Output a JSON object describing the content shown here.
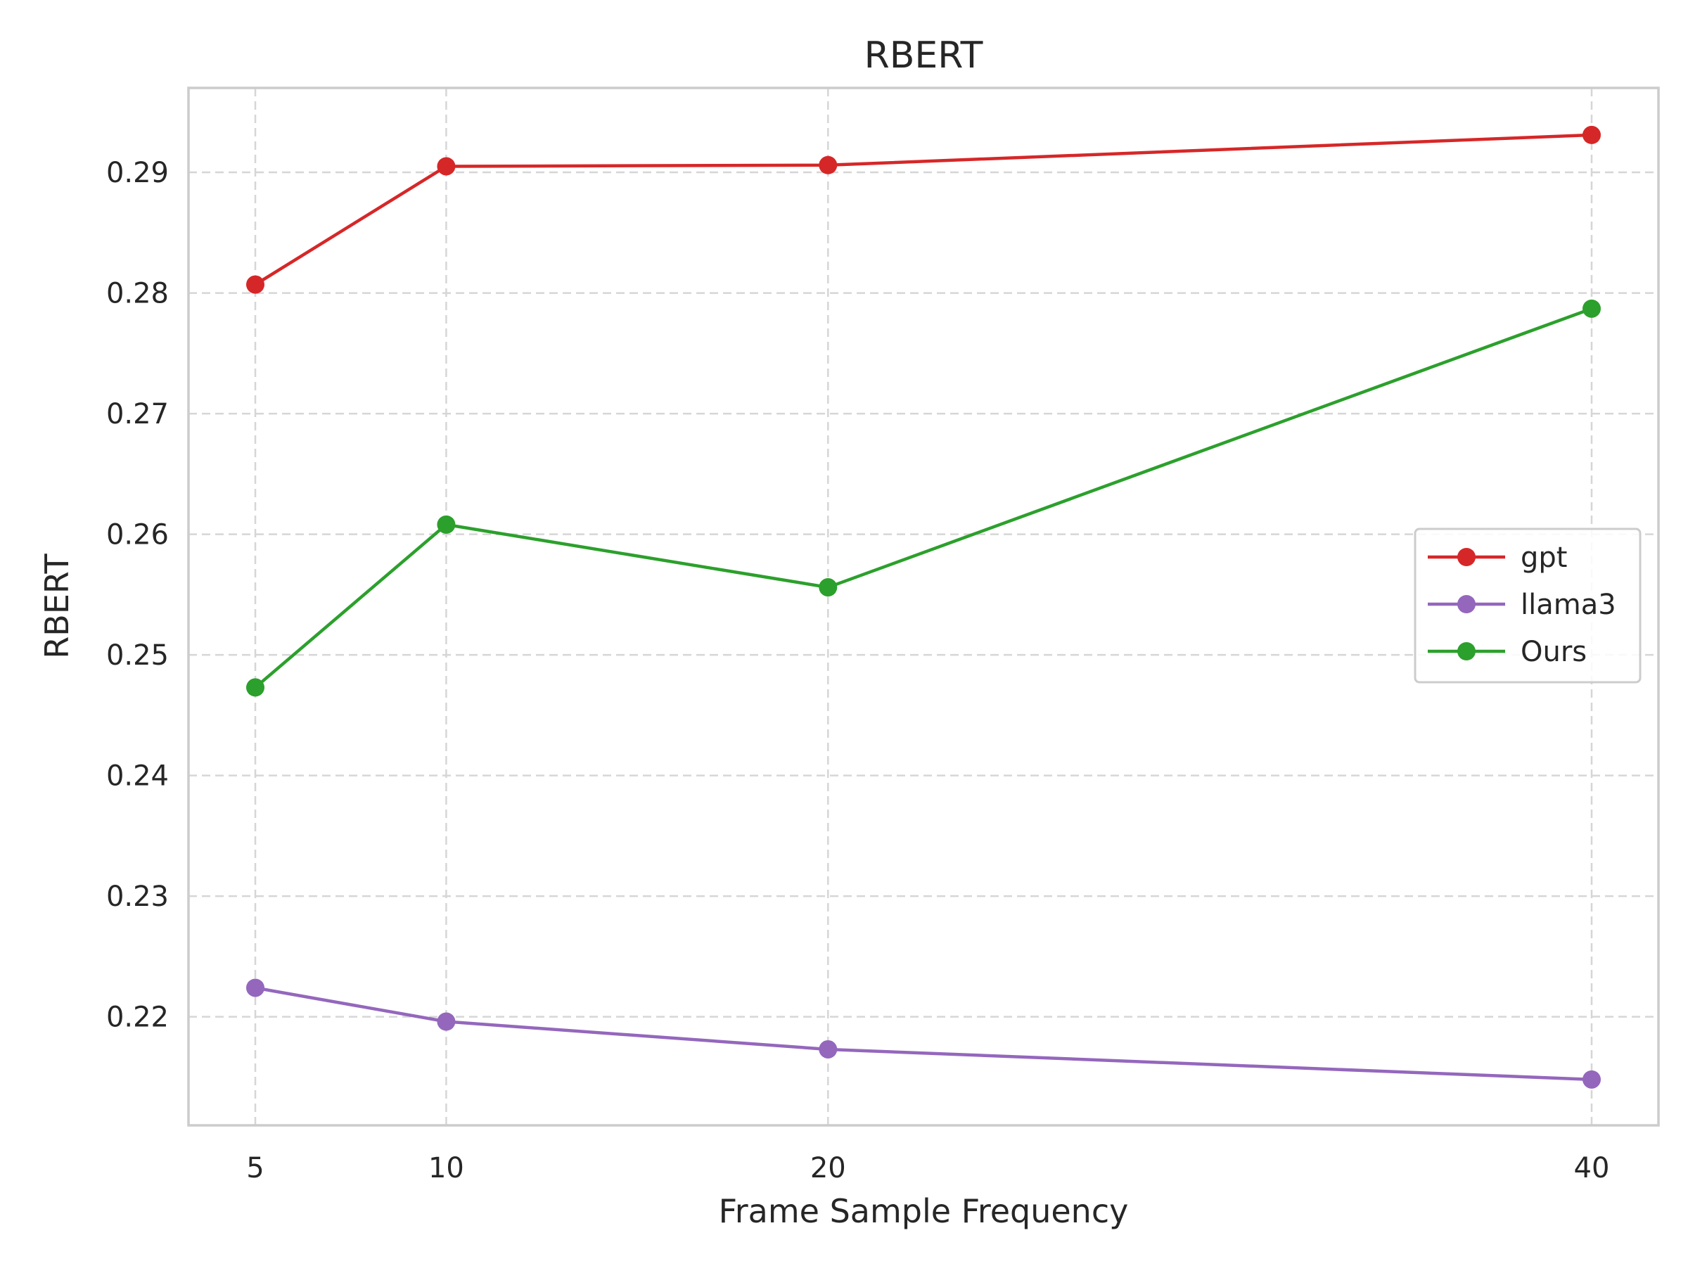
{
  "chart_data": {
    "type": "line",
    "title": "RBERT",
    "xlabel": "Frame Sample Frequency",
    "ylabel": "RBERT",
    "x": [
      5,
      10,
      20,
      40
    ],
    "xticks": [
      "5",
      "10",
      "20",
      "40"
    ],
    "xlim": [
      3.25,
      41.75
    ],
    "ylim": [
      0.211,
      0.297
    ],
    "yticks": [
      "0.22",
      "0.23",
      "0.24",
      "0.25",
      "0.26",
      "0.27",
      "0.28",
      "0.29"
    ],
    "grid": true,
    "legend_position": "center-right",
    "series": [
      {
        "name": "gpt",
        "color": "#d62728",
        "values": [
          0.2807,
          0.2905,
          0.2906,
          0.2931
        ]
      },
      {
        "name": "llama3",
        "color": "#9467bd",
        "values": [
          0.2224,
          0.2196,
          0.2173,
          0.2148
        ]
      },
      {
        "name": "Ours",
        "color": "#2ca02c",
        "values": [
          0.2473,
          0.2608,
          0.2556,
          0.2787
        ]
      }
    ]
  }
}
